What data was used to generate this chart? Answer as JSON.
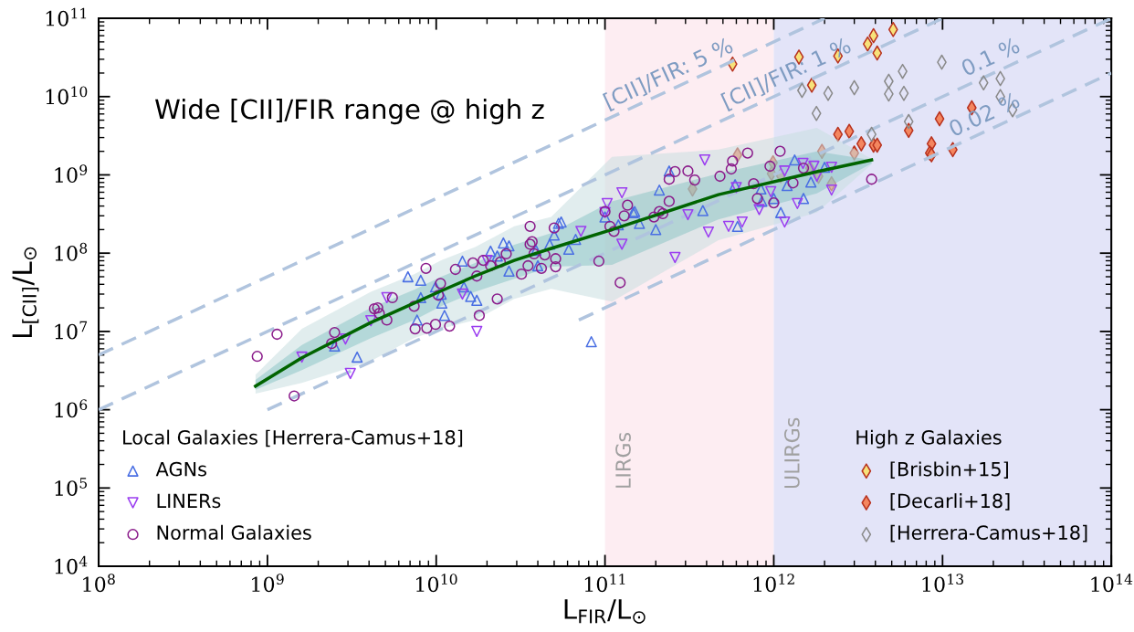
{
  "chart_data": {
    "type": "scatter",
    "xlabel": "L$_{FIR}$/L$_{⊙}$",
    "ylabel": "L$_{[CII]}$/L$_{⊙}$",
    "log": "xy",
    "xlim": [
      100000000.0,
      100000000000000.0
    ],
    "ylim": [
      10000.0,
      100000000000.0
    ],
    "xticks": [
      {
        "value": 100000000.0,
        "label": "10$^{8}$"
      },
      {
        "value": 1000000000.0,
        "label": "10$^{9}$"
      },
      {
        "value": 10000000000.0,
        "label": "10$^{10}$"
      },
      {
        "value": 100000000000.0,
        "label": "10$^{11}$"
      },
      {
        "value": 1000000000000.0,
        "label": "10$^{12}$"
      },
      {
        "value": 10000000000000.0,
        "label": "10$^{13}$"
      },
      {
        "value": 100000000000000.0,
        "label": "10$^{14}$"
      }
    ],
    "yticks": [
      {
        "value": 10000.0,
        "label": "10$^{4}$"
      },
      {
        "value": 100000.0,
        "label": "10$^{5}$"
      },
      {
        "value": 1000000.0,
        "label": "10$^{6}$"
      },
      {
        "value": 10000000.0,
        "label": "10$^{7}$"
      },
      {
        "value": 100000000.0,
        "label": "10$^{8}$"
      },
      {
        "value": 1000000000.0,
        "label": "10$^{9}$"
      },
      {
        "value": 10000000000.0,
        "label": "10$^{10}$"
      },
      {
        "value": 100000000000.0,
        "label": "10$^{11}$"
      }
    ],
    "bands": [
      {
        "axis": "x",
        "from": 100000000000.0,
        "to": 1000000000000.0,
        "label": "LIRGs",
        "color": "#fdedf2"
      },
      {
        "axis": "x",
        "from": 1000000000000.0,
        "to": 100000000000000.0,
        "label": "ULIRGs",
        "color": "#e3e4f8"
      }
    ],
    "legend": [
      "bottom left",
      "bottom right"
    ],
    "legend_title": [
      "Local Galaxies [Herrera-Camus+18]",
      "High z Galaxies"
    ],
    "annotations": [
      "Wide [CII]/FIR range @ high z"
    ],
    "series": [
      {
        "type": "line",
        "name": "[CII]/FIR: 5 %",
        "color": "#b0c4de",
        "line_style": "dashed",
        "x": [
          100000000.0,
          2000000000000.0
        ],
        "values": [
          5000000.0,
          100000000000.0
        ]
      },
      {
        "type": "line",
        "name": "[CII]/FIR: 1 %",
        "color": "#b0c4de",
        "line_style": "dashed",
        "x": [
          100000000.0,
          10000000000000.0
        ],
        "values": [
          1000000.0,
          100000000000.0
        ]
      },
      {
        "type": "line",
        "name": "0.1 %",
        "color": "#b0c4de",
        "line_style": "dashed",
        "x": [
          1000000000.0,
          100000000000000.0
        ],
        "values": [
          1000000.0,
          100000000000.0
        ]
      },
      {
        "type": "line",
        "name": "0.02 %",
        "color": "#b0c4de",
        "line_style": "dashed",
        "x": [
          70000000000.0,
          100000000000000.0
        ],
        "values": [
          14000000.0,
          20000000000.0
        ]
      },
      {
        "name": "[Brisbin+15]",
        "marker": "diamond",
        "color": "#f7e27a",
        "x": [
          570000000000.0,
          1410000000000.0,
          2400000000000.0,
          1680000000000.0,
          3600000000000.0,
          3900000000000.0,
          4100000000000.0,
          5100000000000.0
        ],
        "values": [
          26000000000.0,
          32000000000.0,
          33000000000.0,
          14000000000.0,
          47000000000.0,
          60000000000.0,
          36000000000.0,
          72000000000.0
        ]
      },
      {
        "name": "[Decarli+18]",
        "marker": "diamond",
        "color": "#f4865f",
        "x": [
          2400000000000.0,
          2800000000000.0,
          3300000000000.0,
          3900000000000.0,
          4100000000000.0,
          3000000000000.0,
          6300000000000.0,
          9600000000000.0,
          14900000000000.0,
          8600000000000.0,
          8400000000000.0,
          8600000000000.0,
          11500000000000.0,
          330000000000.0,
          610000000000.0,
          990000000000.0,
          970000000000.0,
          1100000000000.0,
          1640000000000.0,
          1840000000000.0,
          1930000000000.0,
          2200000000000.0
        ],
        "values": [
          3300000000.0,
          3600000000.0,
          2500000000.0,
          2400000000.0,
          2400000000.0,
          1900000000.0,
          3700000000.0,
          5200000000.0,
          7200000000.0,
          2500000000.0,
          1900000000.0,
          1800000000.0,
          2100000000.0,
          660000000.0,
          1800000000.0,
          1430000000.0,
          1040000000.0,
          980000000.0,
          1220000000.0,
          960000000.0,
          2000000000.0,
          770000000.0
        ]
      },
      {
        "name": "[Herrera-Camus+18]",
        "marker": "diamond",
        "color": "#8a8a8a",
        "x": [
          1470000000000.0,
          1790000000000.0,
          2100000000000.0,
          3000000000000.0,
          4800000000000.0,
          4800000000000.0,
          5800000000000.0,
          5900000000000.0,
          6300000000000.0,
          3800000000000.0,
          9900000000000.0,
          17500000000000.0,
          22000000000000.0,
          22000000000000.0,
          26000000000000.0
        ],
        "values": [
          12000000000.0,
          6100000000.0,
          11000000000.0,
          13000000000.0,
          15700000000.0,
          10800000000.0,
          21000000000.0,
          11000000000.0,
          4800000000.0,
          3300000000.0,
          27500000000.0,
          15000000000.0,
          17000000000.0,
          10000000000.0,
          6800000000.0
        ]
      },
      {
        "type": "line",
        "color": "#c9dfe0",
        "values": [
          null,
          null,
          null,
          null,
          null,
          null,
          null,
          null,
          null,
          null,
          null,
          null
        ],
        "x": [
          850000000.0,
          1600000000.0,
          4100000000.0,
          7400000000.0,
          10700000000.0,
          17000000000.0,
          29000000000.0,
          48000000000.0,
          110000000000.0,
          470000000000.0,
          1800000000000.0,
          3800000000000.0
        ],
        "lower": [
          1600000.0,
          2200000.0,
          4200000.0,
          8200000.0,
          10800000.0,
          14000000.0,
          26000000.0,
          35000000.0,
          24000000.0,
          146000000.0,
          330000000.0,
          1360000000.0
        ],
        "upper": [
          2800000.0,
          10800000.0,
          32000000.0,
          54000000.0,
          81000000.0,
          120000000.0,
          220000000.0,
          290000000.0,
          1700000000.0,
          2100000000.0,
          4000000000.0,
          1600000000.0
        ]
      },
      {
        "name": "AGNs",
        "marker": "triangle",
        "color": "#4a6fe3",
        "x": [
          2500000000.0,
          3400000000.0,
          6800000000.0,
          8100000000.0,
          8100000000.0,
          7700000000.0,
          10800000000.0,
          11200000000.0,
          9900000000.0,
          10700000000.0,
          14300000000.0,
          14600000000.0,
          16000000000.0,
          17400000000.0,
          21000000000.0,
          23000000000.0,
          25000000000.0,
          27000000000.0,
          27000000000.0,
          39000000000.0,
          40000000000.0,
          47000000000.0,
          50000000000.0,
          53000000000.0,
          55000000000.0,
          61000000000.0,
          67000000000.0,
          83000000000.0,
          100000000000.0,
          120000000000.0,
          147000000000.0,
          150000000000.0,
          160000000000.0,
          200000000000.0,
          210000000000.0,
          240000000000.0,
          380000000000.0,
          590000000000.0,
          610000000000.0,
          840000000000.0,
          850000000000.0,
          1000000000000.0,
          1100000000000.0,
          1200000000000.0,
          1330000000000.0,
          1500000000000.0,
          1660000000000.0,
          2000000000000.0
        ],
        "values": [
          6500000.0,
          4700000.0,
          50000000.0,
          45000000.0,
          27000000.0,
          14000000.0,
          23000000.0,
          16000000.0,
          37000000.0,
          30000000.0,
          79000000.0,
          37000000.0,
          28000000.0,
          25000000.0,
          106000000.0,
          92000000.0,
          135000000.0,
          124000000.0,
          59000000.0,
          109000000.0,
          69000000.0,
          130000000.0,
          170000000.0,
          240000000.0,
          250000000.0,
          112000000.0,
          150000000.0,
          7400000.0,
          290000000.0,
          230000000.0,
          330000000.0,
          340000000.0,
          240000000.0,
          200000000.0,
          640000000.0,
          1120000000.0,
          350000000.0,
          750000000.0,
          220000000.0,
          660000000.0,
          460000000.0,
          500000000.0,
          330000000.0,
          730000000.0,
          1550000000.0,
          500000000.0,
          810000000.0,
          1250000000.0
        ]
      },
      {
        "name": "LINERs",
        "marker": "triangle_down",
        "color": "#9b3ef0",
        "x": [
          1600000000.0,
          2900000000.0,
          3100000000.0,
          4100000000.0,
          5100000000.0,
          14300000000.0,
          17400000000.0,
          20000000000.0,
          72000000000.0,
          103000000000.0,
          100000000000.0,
          126000000000.0,
          126000000000.0,
          260000000000.0,
          310000000000.0,
          390000000000.0,
          410000000000.0,
          540000000000.0,
          650000000000.0,
          600000000000.0,
          820000000000.0,
          960000000000.0,
          1160000000000.0,
          1160000000000.0,
          1380000000000.0,
          1490000000000.0,
          1730000000000.0,
          1800000000000.0,
          2200000000000.0,
          2200000000000.0
        ],
        "values": [
          4700000.0,
          8000000.0,
          2900000.0,
          13700000.0,
          27000000.0,
          30000000.0,
          10000000.0,
          81000000.0,
          190000000.0,
          430000000.0,
          330000000.0,
          590000000.0,
          130000000.0,
          88000000.0,
          310000000.0,
          1550000000.0,
          186000000.0,
          220000000.0,
          250000000.0,
          690000000.0,
          360000000.0,
          610000000.0,
          250000000.0,
          1120000000.0,
          430000000.0,
          1400000000.0,
          1290000000.0,
          960000000.0,
          1250000000.0,
          640000000.0
        ]
      },
      {
        "name": "Normal Galaxies",
        "marker": "circle",
        "color": "#8b1c8b",
        "x": [
          870000000.0,
          1140000000.0,
          1440000000.0,
          2500000000.0,
          2400000000.0,
          4300000000.0,
          4500000000.0,
          4600000000.0,
          5100000000.0,
          5500000000.0,
          8700000000.0,
          7400000000.0,
          7500000000.0,
          8800000000.0,
          9900000000.0,
          12000000000.0,
          10600000000.0,
          10300000000.0,
          13000000000.0,
          16500000000.0,
          17400000000.0,
          19000000000.0,
          21000000000.0,
          23000000000.0,
          26000000000.0,
          24000000000.0,
          18000000000.0,
          32000000000.0,
          35000000000.0,
          36000000000.0,
          37000000000.0,
          38000000000.0,
          36000000000.0,
          44000000000.0,
          42000000000.0,
          50000000000.0,
          51000000000.0,
          51000000000.0,
          92000000000.0,
          100000000000.0,
          107000000000.0,
          123000000000.0,
          113000000000.0,
          130000000000.0,
          136000000000.0,
          195000000000.0,
          210000000000.0,
          220000000000.0,
          240000000000.0,
          240000000000.0,
          260000000000.0,
          310000000000.0,
          340000000000.0,
          480000000000.0,
          560000000000.0,
          570000000000.0,
          700000000000.0,
          760000000000.0,
          800000000000.0,
          1000000000000.0,
          950000000000.0,
          1090000000000.0,
          1300000000000.0,
          1500000000000.0,
          3800000000000.0
        ],
        "values": [
          4800000.0,
          9200000.0,
          1500000.0,
          9700000.0,
          7000000.0,
          19500000.0,
          20000000.0,
          17000000.0,
          14000000.0,
          27000000.0,
          64000000.0,
          21000000.0,
          10800000.0,
          11000000.0,
          12300000.0,
          11700000.0,
          41000000.0,
          29000000.0,
          62000000.0,
          75000000.0,
          51000000.0,
          81000000.0,
          69000000.0,
          26000000.0,
          98000000.0,
          77000000.0,
          16000000.0,
          54000000.0,
          69000000.0,
          130000000.0,
          140000000.0,
          98000000.0,
          220000000.0,
          95000000.0,
          64000000.0,
          210000000.0,
          85000000.0,
          67000000.0,
          79000000.0,
          340000000.0,
          220000000.0,
          42000000.0,
          190000000.0,
          300000000.0,
          410000000.0,
          290000000.0,
          340000000.0,
          320000000.0,
          460000000.0,
          880000000.0,
          1100000000.0,
          1120000000.0,
          860000000.0,
          960000000.0,
          1190000000.0,
          1500000000.0,
          1900000000.0,
          770000000.0,
          500000000.0,
          440000000.0,
          1290000000.0,
          2000000000.0,
          790000000.0,
          1220000000.0,
          880000000.0
        ]
      },
      {
        "type": "line",
        "color": "#006400",
        "line_style": "solid",
        "x": [
          850000000.0,
          1600000000.0,
          4100000000.0,
          7400000000.0,
          10700000000.0,
          17000000000.0,
          29000000000.0,
          48000000000.0,
          110000000000.0,
          470000000000.0,
          1800000000000.0,
          3800000000000.0
        ],
        "values": [
          2000000.0,
          4600000.0,
          13000000.0,
          23000000.0,
          33000000.0,
          51000000.0,
          81000000.0,
          115000000.0,
          200000000.0,
          560000000.0,
          1100000000.0,
          1550000000.0
        ],
        "lower": [
          1800000.0,
          3200000.0,
          8200000.0,
          14000000.0,
          21000000.0,
          32000000.0,
          47000000.0,
          67000000.0,
          71000000.0,
          270000000.0,
          580000000.0,
          1400000000.0
        ],
        "upper": [
          2400000.0,
          6700000.0,
          20000000.0,
          34000000.0,
          50000000.0,
          75000000.0,
          128000000.0,
          180000000.0,
          460000000.0,
          1040000000.0,
          2000000000.0,
          1550000000.0
        ]
      }
    ]
  }
}
